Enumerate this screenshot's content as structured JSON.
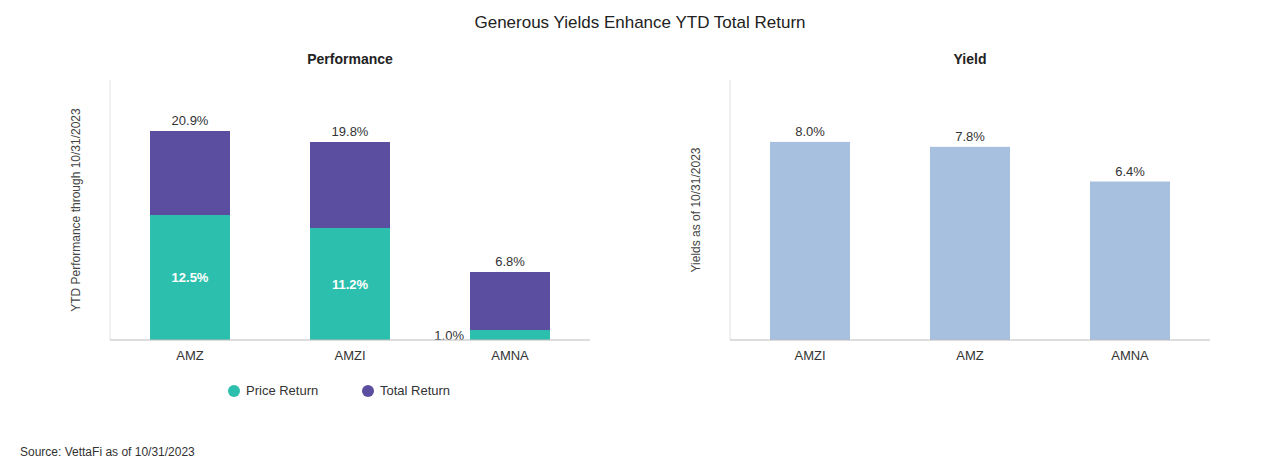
{
  "title": "Generous Yields Enhance YTD Total Return",
  "annotations": [
    "Source: VettaFi as of 10/31/2023"
  ],
  "chart_data": [
    {
      "type": "bar",
      "title": "Performance",
      "y_label": "YTD Performance through 10/31/2023",
      "categories": [
        "AMZ",
        "AMZI",
        "AMNA"
      ],
      "series": [
        {
          "name": "Price Return",
          "color": "#2dbfad",
          "values": [
            12.5,
            11.2,
            1.0
          ],
          "value_labels": [
            "12.5%",
            "11.2%",
            "1.0%"
          ]
        },
        {
          "name": "Total Return",
          "color": "#5b4ea0",
          "values": [
            8.4,
            8.6,
            5.8
          ]
        }
      ],
      "totals": [
        20.9,
        19.8,
        6.8
      ],
      "total_labels": [
        "20.9%",
        "19.8%",
        "6.8%"
      ],
      "stacked": true,
      "data_labels": true,
      "legend": "bottom",
      "tick_labels": "x",
      "ylim": [
        0,
        26
      ]
    },
    {
      "type": "bar",
      "title": "Yield",
      "y_label": "Yields as of 10/31/2023",
      "categories": [
        "AMZI",
        "AMZ",
        "AMNA"
      ],
      "values": [
        8.0,
        7.8,
        6.4
      ],
      "value_labels": [
        "8.0%",
        "7.8%",
        "6.4%"
      ],
      "color": "#a8c0e0",
      "data_labels": true,
      "tick_labels": "x",
      "ylim": [
        0,
        10.5
      ]
    }
  ]
}
